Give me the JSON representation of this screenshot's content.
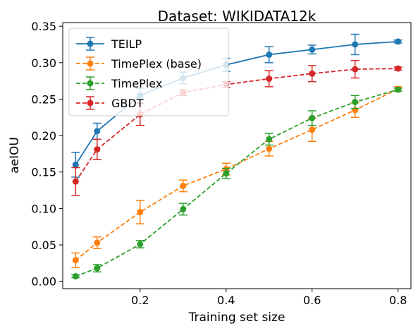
{
  "chart_data": {
    "type": "line",
    "title": "Dataset: WIKIDATA12k",
    "xlabel": "Training set size",
    "ylabel": "aeIOU",
    "xlim": [
      0.02,
      0.83
    ],
    "ylim": [
      -0.01,
      0.355
    ],
    "xticks": [
      0.2,
      0.4,
      0.6,
      0.8
    ],
    "xtick_labels": [
      "0.2",
      "0.4",
      "0.6",
      "0.8"
    ],
    "yticks": [
      0.0,
      0.05,
      0.1,
      0.15,
      0.2,
      0.25,
      0.3,
      0.35
    ],
    "ytick_labels": [
      "0.00",
      "0.05",
      "0.10",
      "0.15",
      "0.20",
      "0.25",
      "0.30",
      "0.35"
    ],
    "grid": false,
    "legend_position": "top-left",
    "series": [
      {
        "name": "TEILP",
        "color": "#1f77b4",
        "dashed": false,
        "x": [
          0.05,
          0.1,
          0.2,
          0.3,
          0.4,
          0.5,
          0.6,
          0.7,
          0.8
        ],
        "y": [
          0.16,
          0.206,
          0.255,
          0.279,
          0.297,
          0.311,
          0.318,
          0.325,
          0.329
        ],
        "err": [
          0.017,
          0.011,
          0.01,
          0.008,
          0.009,
          0.011,
          0.006,
          0.014,
          0.002
        ]
      },
      {
        "name": "TimePlex (base)",
        "color": "#ff7f0e",
        "dashed": true,
        "x": [
          0.05,
          0.1,
          0.2,
          0.3,
          0.4,
          0.5,
          0.6,
          0.7,
          0.8
        ],
        "y": [
          0.029,
          0.053,
          0.095,
          0.131,
          0.154,
          0.182,
          0.208,
          0.235,
          0.264
        ],
        "err": [
          0.01,
          0.008,
          0.016,
          0.008,
          0.008,
          0.01,
          0.016,
          0.01,
          0.003
        ]
      },
      {
        "name": "TimePlex",
        "color": "#2ca02c",
        "dashed": true,
        "x": [
          0.05,
          0.1,
          0.2,
          0.3,
          0.4,
          0.5,
          0.6,
          0.7,
          0.8
        ],
        "y": [
          0.007,
          0.018,
          0.051,
          0.099,
          0.148,
          0.195,
          0.224,
          0.246,
          0.263
        ],
        "err": [
          0.002,
          0.005,
          0.005,
          0.008,
          0.007,
          0.008,
          0.01,
          0.009,
          0.002
        ]
      },
      {
        "name": "GBDT",
        "color": "#d62728",
        "dashed": true,
        "x": [
          0.05,
          0.1,
          0.2,
          0.3,
          0.4,
          0.5,
          0.6,
          0.7,
          0.8
        ],
        "y": [
          0.137,
          0.181,
          0.229,
          0.259,
          0.27,
          0.278,
          0.285,
          0.291,
          0.292
        ],
        "err": [
          0.019,
          0.014,
          0.015,
          0.004,
          0.004,
          0.011,
          0.011,
          0.012,
          0.002
        ]
      }
    ]
  }
}
